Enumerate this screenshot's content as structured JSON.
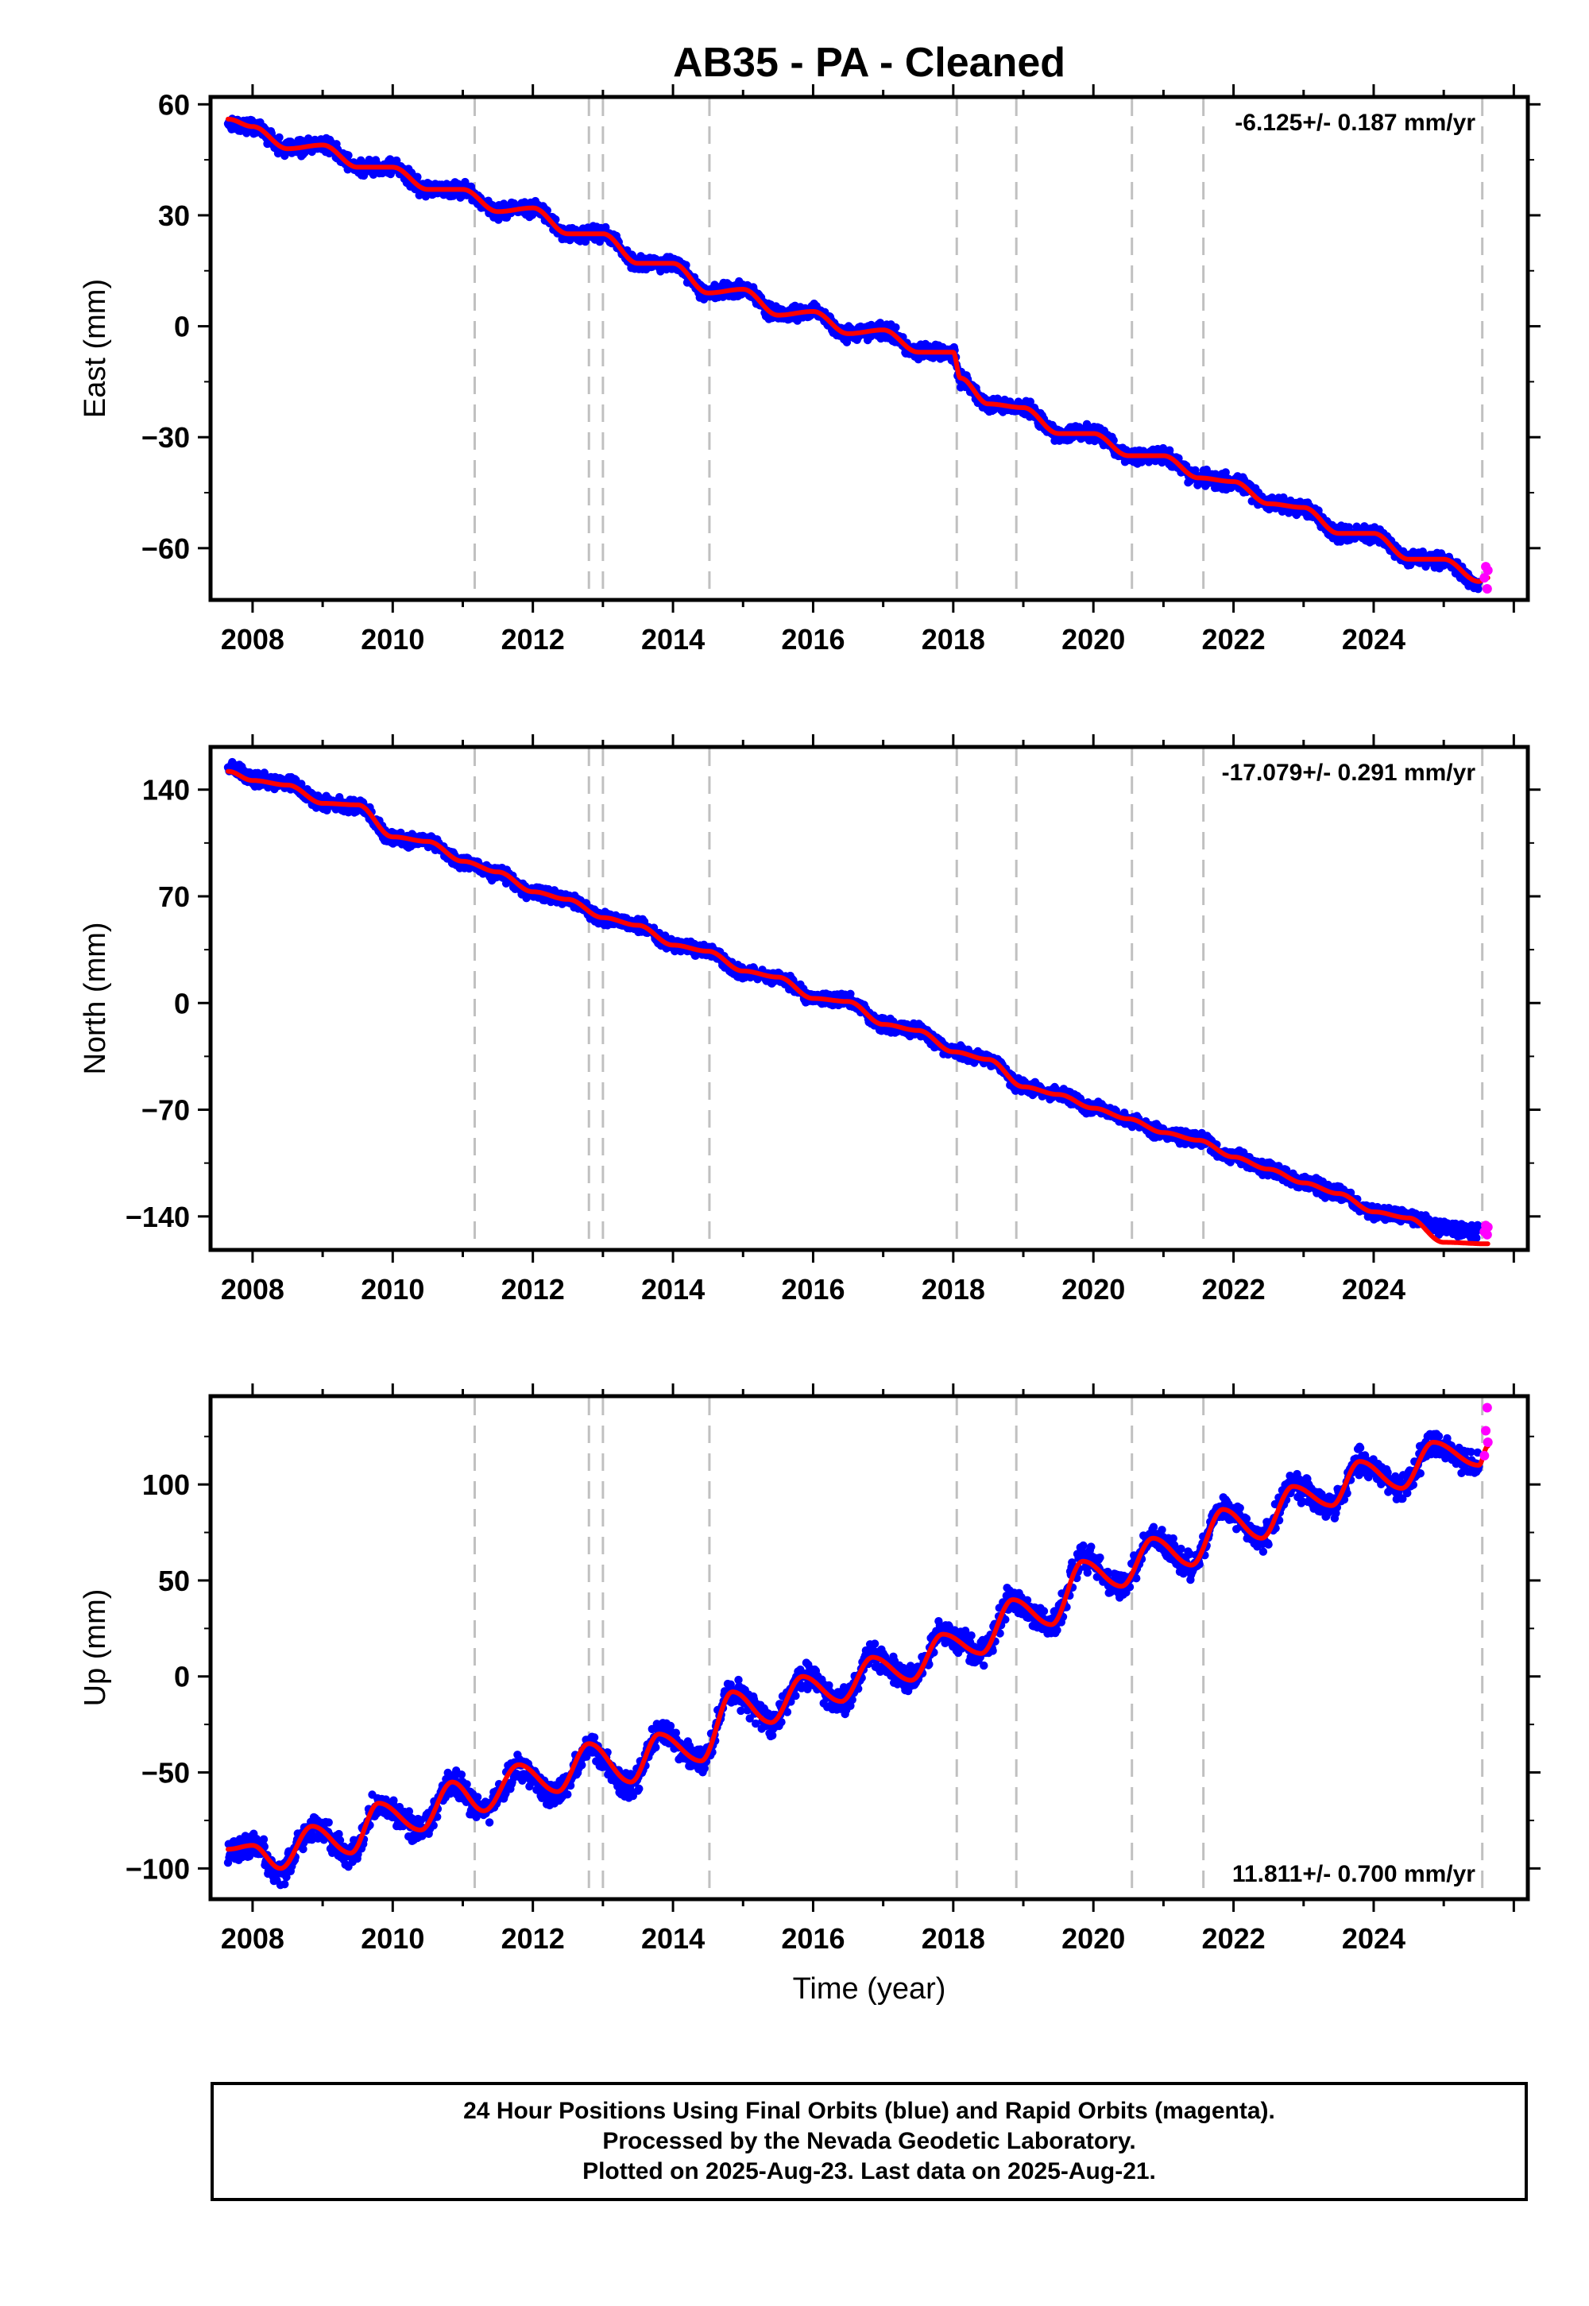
{
  "title": "AB35  - PA - Cleaned",
  "caption": {
    "line1": "24 Hour Positions Using Final Orbits (blue) and Rapid Orbits (magenta).",
    "line2": "Processed by the Nevada Geodetic Laboratory.",
    "line3": "Plotted on 2025-Aug-23. Last data on 2025-Aug-21."
  },
  "colors": {
    "final_orbits": "#0000ff",
    "rapid_orbits": "#ff00ff",
    "model": "#ff0000",
    "event_lines": "#c0c0c0"
  },
  "chart_data": [
    {
      "type": "scatter",
      "panel": "east",
      "ylabel": "East (mm)",
      "xlabel": "",
      "xlim": [
        2007.4,
        2026.2
      ],
      "ylim": [
        -74,
        62
      ],
      "yticks": [
        60,
        30,
        0,
        -30,
        -60
      ],
      "ytick_labels": [
        "60",
        "30",
        "0",
        "−30",
        "−60"
      ],
      "xticks": [
        2008,
        2010,
        2012,
        2014,
        2016,
        2018,
        2020,
        2022,
        2024
      ],
      "rate_label": "-6.125+/- 0.187 mm/yr",
      "rate_position": "top-right",
      "seasonal_amplitude": 2,
      "event_lines": [
        2011.17,
        2012.8,
        2013.0,
        2014.52,
        2018.05,
        2018.9,
        2020.55,
        2021.57,
        2025.55
      ],
      "series": [
        {
          "name": "Final Orbits",
          "color": "#0000ff",
          "x": [
            2007.65,
            2008.0,
            2008.5,
            2009.0,
            2009.5,
            2010.0,
            2010.5,
            2011.0,
            2011.5,
            2012.0,
            2012.5,
            2013.0,
            2013.5,
            2014.0,
            2014.5,
            2015.0,
            2015.5,
            2016.0,
            2016.5,
            2017.0,
            2017.5,
            2018.0,
            2018.1,
            2018.5,
            2019.0,
            2019.5,
            2020.0,
            2020.5,
            2021.0,
            2021.5,
            2022.0,
            2022.5,
            2023.0,
            2023.5,
            2024.0,
            2024.5,
            2025.0,
            2025.5
          ],
          "y": [
            55,
            54,
            48,
            49,
            43,
            43,
            37,
            37,
            31,
            32,
            25,
            25,
            17,
            17,
            9,
            10,
            3,
            4,
            -2,
            -1,
            -7,
            -7,
            -14,
            -21,
            -22,
            -29,
            -29,
            -35,
            -35,
            -41,
            -42,
            -48,
            -49,
            -56,
            -56,
            -63,
            -63,
            -70
          ]
        },
        {
          "name": "Rapid Orbits",
          "color": "#ff00ff",
          "x": [
            2025.58,
            2025.6,
            2025.62,
            2025.63
          ],
          "y": [
            -68,
            -65,
            -71,
            -66
          ]
        }
      ],
      "model": {
        "name": "Model",
        "color": "#ff0000",
        "x": [
          2007.65,
          2008.0,
          2008.5,
          2009.0,
          2009.5,
          2010.0,
          2010.5,
          2011.0,
          2011.5,
          2012.0,
          2012.5,
          2013.0,
          2013.5,
          2014.0,
          2014.5,
          2015.0,
          2015.5,
          2016.0,
          2016.5,
          2017.0,
          2017.5,
          2018.0,
          2018.1,
          2018.5,
          2019.0,
          2019.5,
          2020.0,
          2020.5,
          2021.0,
          2021.5,
          2022.0,
          2022.5,
          2023.0,
          2023.5,
          2024.0,
          2024.5,
          2025.0,
          2025.5,
          2025.63
        ],
        "y": [
          56,
          54,
          48,
          49,
          43,
          43,
          37,
          37,
          31,
          32,
          25,
          25,
          17,
          17,
          9,
          10,
          3,
          4,
          -2,
          -1,
          -7,
          -7,
          -14,
          -21,
          -22,
          -29,
          -29,
          -35,
          -35,
          -41,
          -42,
          -48,
          -49,
          -56,
          -56,
          -63,
          -63,
          -69,
          -68
        ]
      }
    },
    {
      "type": "scatter",
      "panel": "north",
      "ylabel": "North (mm)",
      "xlabel": "",
      "xlim": [
        2007.4,
        2026.2
      ],
      "ylim": [
        -162,
        168
      ],
      "yticks": [
        140,
        70,
        0,
        -70,
        -140
      ],
      "ytick_labels": [
        "140",
        "70",
        "0",
        "−70",
        "−140"
      ],
      "xticks": [
        2008,
        2010,
        2012,
        2014,
        2016,
        2018,
        2020,
        2022,
        2024
      ],
      "rate_label": "-17.079+/- 0.291 mm/yr",
      "rate_position": "top-right",
      "seasonal_amplitude": 3,
      "event_lines": [
        2011.17,
        2012.8,
        2013.0,
        2014.52,
        2018.05,
        2018.9,
        2020.55,
        2021.57,
        2025.55
      ],
      "series": [
        {
          "name": "Final Orbits",
          "color": "#0000ff",
          "x": [
            2007.65,
            2008.0,
            2008.5,
            2009.0,
            2009.5,
            2010.0,
            2010.5,
            2011.0,
            2011.5,
            2012.0,
            2012.5,
            2013.0,
            2013.5,
            2014.0,
            2014.5,
            2015.0,
            2015.5,
            2016.0,
            2016.5,
            2017.0,
            2017.5,
            2018.0,
            2018.5,
            2019.0,
            2019.5,
            2020.0,
            2020.5,
            2021.0,
            2021.5,
            2022.0,
            2022.5,
            2023.0,
            2023.5,
            2024.0,
            2024.5,
            2025.0,
            2025.5
          ],
          "y": [
            155,
            147,
            144,
            131,
            130,
            108,
            106,
            93,
            85,
            73,
            68,
            56,
            51,
            38,
            34,
            20,
            17,
            3,
            1,
            -14,
            -18,
            -32,
            -37,
            -55,
            -60,
            -69,
            -76,
            -85,
            -90,
            -101,
            -109,
            -118,
            -125,
            -137,
            -140,
            -148,
            -150
          ]
        },
        {
          "name": "Rapid Orbits",
          "color": "#ff00ff",
          "x": [
            2025.58,
            2025.6,
            2025.62,
            2025.63
          ],
          "y": [
            -150,
            -146,
            -152,
            -147
          ]
        }
      ],
      "model": {
        "name": "Model",
        "color": "#ff0000",
        "x": [
          2007.65,
          2008.0,
          2008.5,
          2009.0,
          2009.5,
          2010.0,
          2010.5,
          2011.0,
          2011.5,
          2012.0,
          2012.5,
          2013.0,
          2013.5,
          2014.0,
          2014.5,
          2015.0,
          2015.5,
          2016.0,
          2016.5,
          2017.0,
          2017.5,
          2018.0,
          2018.5,
          2019.0,
          2019.5,
          2020.0,
          2020.5,
          2021.0,
          2021.5,
          2022.0,
          2022.5,
          2023.0,
          2023.5,
          2024.0,
          2024.5,
          2025.0,
          2025.63
        ],
        "y": [
          152,
          146,
          143,
          131,
          130,
          109,
          106,
          93,
          86,
          73,
          68,
          56,
          51,
          38,
          34,
          21,
          17,
          3,
          1,
          -14,
          -18,
          -32,
          -37,
          -55,
          -60,
          -69,
          -76,
          -85,
          -90,
          -101,
          -109,
          -118,
          -125,
          -137,
          -141,
          -157,
          -158
        ]
      }
    },
    {
      "type": "scatter",
      "panel": "up",
      "ylabel": "Up (mm)",
      "xlabel": "Time (year)",
      "xlim": [
        2007.4,
        2026.2
      ],
      "ylim": [
        -116,
        146
      ],
      "yticks": [
        100,
        50,
        0,
        -50,
        -100
      ],
      "ytick_labels": [
        "100",
        "50",
        "0",
        "−50",
        "−100"
      ],
      "xticks": [
        2008,
        2010,
        2012,
        2014,
        2016,
        2018,
        2020,
        2022,
        2024
      ],
      "rate_label": "11.811+/- 0.700 mm/yr",
      "rate_position": "bottom-right",
      "seasonal_amplitude": 12,
      "event_lines": [
        2011.17,
        2012.8,
        2013.0,
        2014.52,
        2018.05,
        2018.9,
        2020.55,
        2021.57,
        2025.55
      ],
      "series": [
        {
          "name": "Final Orbits",
          "color": "#0000ff",
          "x": [
            2007.65,
            2008.0,
            2008.4,
            2008.85,
            2009.4,
            2009.8,
            2010.4,
            2010.85,
            2011.3,
            2011.8,
            2012.35,
            2012.8,
            2013.4,
            2013.8,
            2014.4,
            2014.85,
            2015.4,
            2015.85,
            2016.4,
            2016.85,
            2017.4,
            2017.85,
            2018.4,
            2018.85,
            2019.4,
            2019.85,
            2020.4,
            2020.85,
            2021.4,
            2021.85,
            2022.4,
            2022.85,
            2023.4,
            2023.8,
            2024.4,
            2024.85,
            2025.5
          ],
          "y": [
            -92,
            -88,
            -102,
            -78,
            -92,
            -66,
            -80,
            -56,
            -70,
            -48,
            -62,
            -36,
            -57,
            -30,
            -44,
            -8,
            -24,
            0,
            -13,
            10,
            -2,
            22,
            12,
            40,
            27,
            61,
            47,
            72,
            58,
            87,
            72,
            99,
            89,
            112,
            98,
            122,
            110
          ]
        },
        {
          "name": "Rapid Orbits",
          "color": "#ff00ff",
          "x": [
            2025.58,
            2025.6,
            2025.62,
            2025.63
          ],
          "y": [
            115,
            128,
            140,
            122
          ]
        }
      ],
      "model": {
        "name": "Model",
        "color": "#ff0000",
        "x": [
          2007.65,
          2008.0,
          2008.4,
          2008.85,
          2009.4,
          2009.8,
          2010.4,
          2010.85,
          2011.3,
          2011.8,
          2012.35,
          2012.8,
          2013.4,
          2013.8,
          2014.4,
          2014.85,
          2015.4,
          2015.85,
          2016.4,
          2016.85,
          2017.4,
          2017.85,
          2018.4,
          2018.85,
          2019.4,
          2019.85,
          2020.4,
          2020.85,
          2021.4,
          2021.85,
          2022.4,
          2022.85,
          2023.4,
          2023.8,
          2024.4,
          2024.85,
          2025.5,
          2025.63
        ],
        "y": [
          -90,
          -88,
          -100,
          -78,
          -92,
          -66,
          -80,
          -55,
          -70,
          -46,
          -60,
          -35,
          -55,
          -30,
          -44,
          -8,
          -24,
          0,
          -13,
          10,
          -2,
          22,
          12,
          40,
          27,
          60,
          47,
          72,
          58,
          87,
          72,
          99,
          89,
          112,
          98,
          122,
          110,
          120
        ]
      }
    }
  ]
}
